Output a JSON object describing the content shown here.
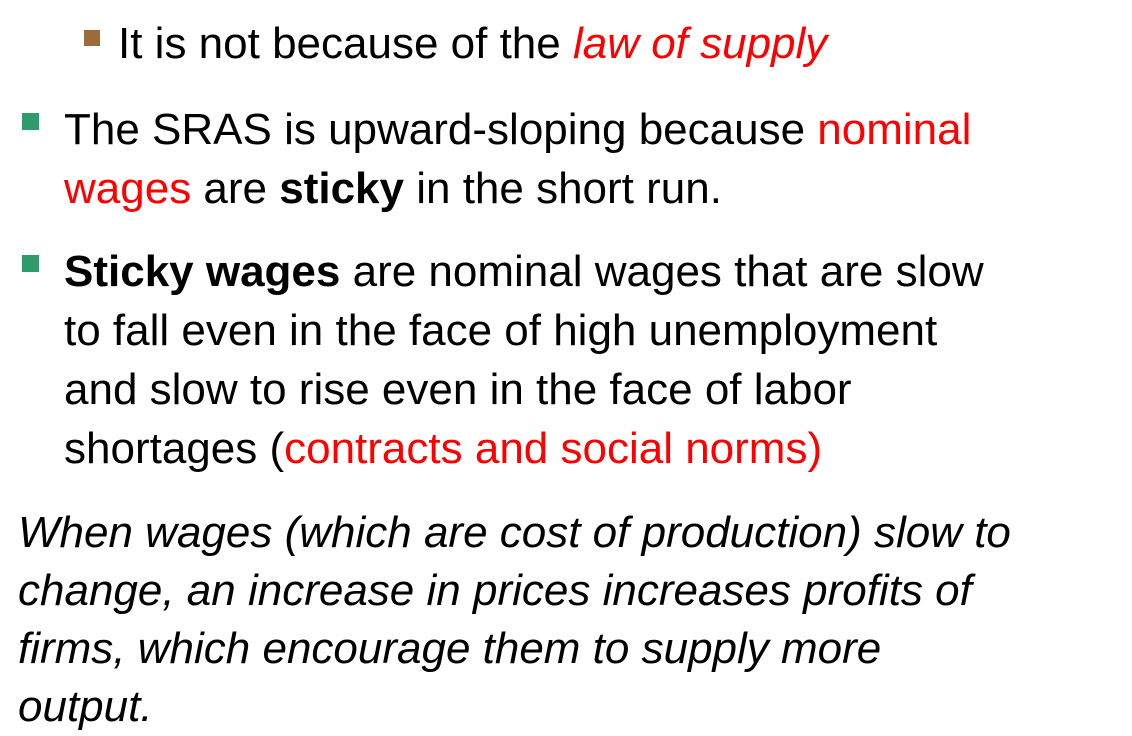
{
  "sub_bullet": {
    "lead": "It is not because of the ",
    "emphasis": "law of supply"
  },
  "bullet_1": {
    "part1": "The SRAS is upward-sloping because ",
    "red_line1": "nominal",
    "red_line2": "wages",
    "part2": " are ",
    "bold": "sticky",
    "part3": " in the short run."
  },
  "bullet_2": {
    "bold": "Sticky wages",
    "line1_rest": " are nominal wages that are slow",
    "line2": "to fall even in the face of high unemployment",
    "line3": "and slow to rise even in the face of labor",
    "line4_start": "shortages (",
    "line4_red": "contracts and social norms)"
  },
  "closing": {
    "line1": "When wages (which are cost of production) slow to",
    "line2": "change, an increase in prices increases profits of",
    "line3": "firms, which encourage them to supply more",
    "line4": "output."
  },
  "colors": {
    "sub_bullet_marker": "#9c6b3a",
    "main_bullet_marker": "#2f9a6a",
    "emphasis_red": "#ff0000"
  }
}
